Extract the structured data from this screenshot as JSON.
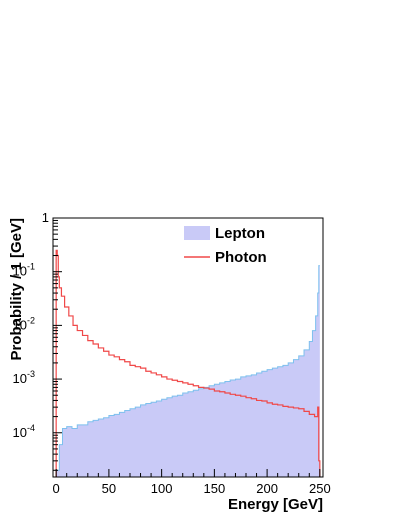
{
  "chart_data": {
    "type": "histogram",
    "title": "",
    "xlabel": "Energy [GeV]",
    "ylabel": "Probability / 1 [GeV]",
    "xlim": [
      -3,
      253
    ],
    "ylim": [
      1.5e-05,
      1
    ],
    "yscale": "log",
    "grid": false,
    "legend_position": "top-right",
    "x_ticks": [
      0,
      50,
      100,
      150,
      200,
      250
    ],
    "y_ticks": [
      {
        "value": 1,
        "base": "1",
        "exp": ""
      },
      {
        "value": 0.1,
        "base": "10",
        "exp": "-1"
      },
      {
        "value": 0.01,
        "base": "10",
        "exp": "-2"
      },
      {
        "value": 0.001,
        "base": "10",
        "exp": "-3"
      },
      {
        "value": 0.0001,
        "base": "10",
        "exp": "-4"
      }
    ],
    "series": [
      {
        "name": "Lepton",
        "style": "filled",
        "fill_color": "#c9caf7",
        "line_color": "#7ec0ee",
        "bins": [
          [
            0,
            2e-05
          ],
          [
            3,
            6e-05
          ],
          [
            6,
            0.00012
          ],
          [
            10,
            0.00013
          ],
          [
            15,
            0.00012
          ],
          [
            20,
            0.00014
          ],
          [
            25,
            0.00014
          ],
          [
            30,
            0.00016
          ],
          [
            35,
            0.00017
          ],
          [
            40,
            0.00018
          ],
          [
            45,
            0.00019
          ],
          [
            50,
            0.00021
          ],
          [
            55,
            0.00022
          ],
          [
            60,
            0.00024
          ],
          [
            65,
            0.00026
          ],
          [
            70,
            0.00028
          ],
          [
            75,
            0.0003
          ],
          [
            80,
            0.00033
          ],
          [
            85,
            0.00035
          ],
          [
            90,
            0.00037
          ],
          [
            95,
            0.00039
          ],
          [
            100,
            0.00042
          ],
          [
            105,
            0.00045
          ],
          [
            110,
            0.00048
          ],
          [
            115,
            0.0005
          ],
          [
            120,
            0.00055
          ],
          [
            125,
            0.00058
          ],
          [
            130,
            0.00062
          ],
          [
            135,
            0.00066
          ],
          [
            140,
            0.0007
          ],
          [
            145,
            0.00075
          ],
          [
            150,
            0.0008
          ],
          [
            155,
            0.00085
          ],
          [
            160,
            0.0009
          ],
          [
            165,
            0.00096
          ],
          [
            170,
            0.001
          ],
          [
            175,
            0.0011
          ],
          [
            180,
            0.00115
          ],
          [
            185,
            0.0012
          ],
          [
            190,
            0.0013
          ],
          [
            195,
            0.0014
          ],
          [
            200,
            0.0015
          ],
          [
            205,
            0.0016
          ],
          [
            210,
            0.0017
          ],
          [
            215,
            0.0018
          ],
          [
            220,
            0.002
          ],
          [
            225,
            0.0023
          ],
          [
            230,
            0.0027
          ],
          [
            235,
            0.0035
          ],
          [
            240,
            0.005
          ],
          [
            243,
            0.008
          ],
          [
            246,
            0.015
          ],
          [
            248,
            0.04
          ],
          [
            249,
            0.13
          ]
        ]
      },
      {
        "name": "Photon",
        "style": "line",
        "line_color": "#f04848",
        "bins": [
          [
            0,
            0.25
          ],
          [
            1,
            0.2
          ],
          [
            2,
            0.08
          ],
          [
            3,
            0.05
          ],
          [
            5,
            0.035
          ],
          [
            8,
            0.022
          ],
          [
            12,
            0.015
          ],
          [
            16,
            0.01
          ],
          [
            20,
            0.008
          ],
          [
            25,
            0.0065
          ],
          [
            30,
            0.0052
          ],
          [
            35,
            0.0045
          ],
          [
            40,
            0.0038
          ],
          [
            45,
            0.0033
          ],
          [
            50,
            0.0028
          ],
          [
            55,
            0.0026
          ],
          [
            60,
            0.0023
          ],
          [
            65,
            0.0021
          ],
          [
            70,
            0.0018
          ],
          [
            75,
            0.0017
          ],
          [
            80,
            0.0016
          ],
          [
            85,
            0.0014
          ],
          [
            90,
            0.0013
          ],
          [
            95,
            0.0012
          ],
          [
            100,
            0.0011
          ],
          [
            105,
            0.001
          ],
          [
            110,
            0.00095
          ],
          [
            115,
            0.0009
          ],
          [
            120,
            0.00085
          ],
          [
            125,
            0.0008
          ],
          [
            130,
            0.00075
          ],
          [
            135,
            0.0007
          ],
          [
            140,
            0.00068
          ],
          [
            145,
            0.00065
          ],
          [
            150,
            0.0006
          ],
          [
            155,
            0.00058
          ],
          [
            160,
            0.00055
          ],
          [
            165,
            0.00052
          ],
          [
            170,
            0.0005
          ],
          [
            175,
            0.00048
          ],
          [
            180,
            0.00045
          ],
          [
            185,
            0.00043
          ],
          [
            190,
            0.0004
          ],
          [
            195,
            0.00039
          ],
          [
            200,
            0.00036
          ],
          [
            205,
            0.00034
          ],
          [
            210,
            0.00033
          ],
          [
            215,
            0.00031
          ],
          [
            220,
            0.0003
          ],
          [
            225,
            0.00029
          ],
          [
            230,
            0.00028
          ],
          [
            235,
            0.00025
          ],
          [
            240,
            0.00022
          ],
          [
            245,
            0.0002
          ],
          [
            248,
            0.0003
          ],
          [
            249,
            3e-05
          ]
        ]
      }
    ]
  }
}
